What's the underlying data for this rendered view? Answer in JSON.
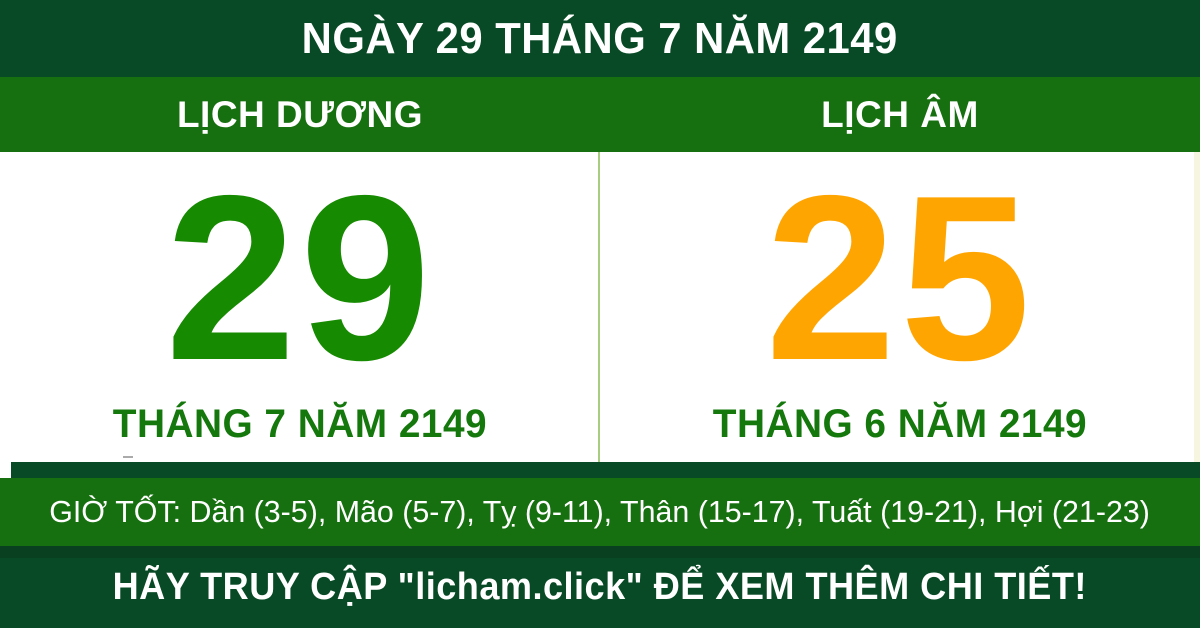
{
  "colors": {
    "dark_green": "#084a25",
    "band_green": "#177010",
    "day_green": "#168a00",
    "day_orange": "#ffa502",
    "month_green": "#15780d",
    "divider_green": "#a8cc80",
    "edge_cream": "#f6f6e0",
    "shadow_green": "#093d1f"
  },
  "header": {
    "title": "NGÀY 29 THÁNG 7 NĂM 2149"
  },
  "calendar": {
    "solar": {
      "label": "LỊCH DƯƠNG",
      "day": "29",
      "month_year": "THÁNG 7 NĂM 2149"
    },
    "lunar": {
      "label": "LỊCH ÂM",
      "day": "25",
      "month_year": "THÁNG 6 NĂM 2149"
    }
  },
  "good_hours": {
    "text": "GIỜ TỐT: Dần (3-5), Mão (5-7), Tỵ (9-11), Thân (15-17), Tuất (19-21), Hợi (21-23)"
  },
  "footer": {
    "text": "HÃY TRUY CẬP \"licham.click\" ĐỂ XEM THÊM CHI TIẾT!"
  }
}
